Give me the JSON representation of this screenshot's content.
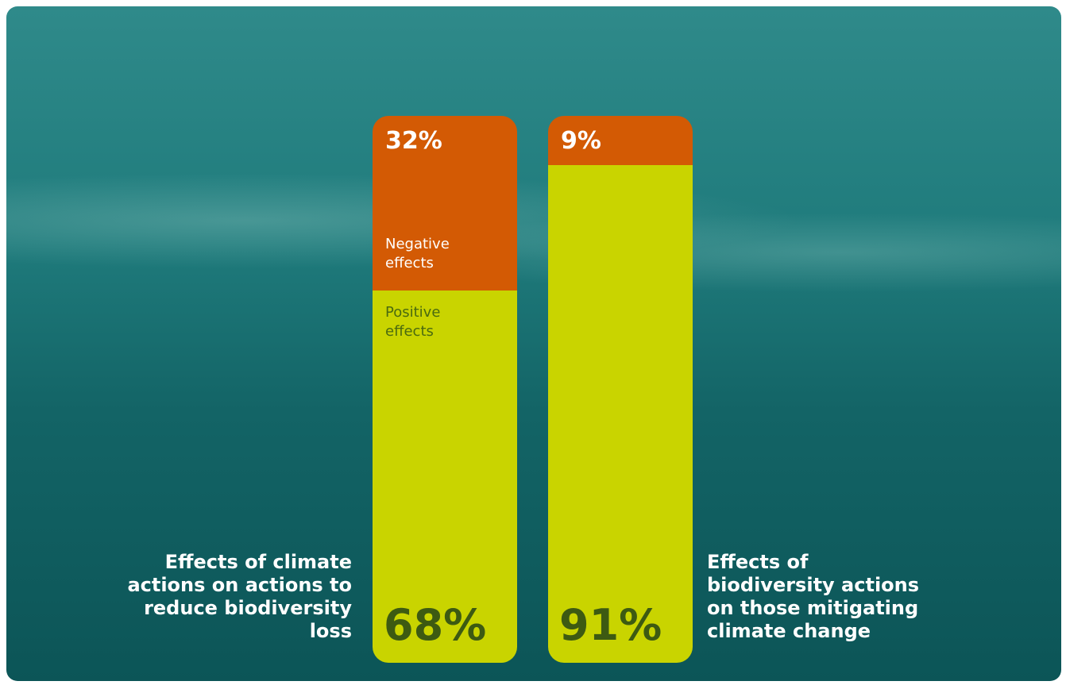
{
  "chart_data": {
    "type": "bar",
    "stacked": true,
    "categories": [
      "Effects of climate actions on actions to reduce biodiversity loss",
      "Effects of biodiversity actions on those mitigating climate change"
    ],
    "series": [
      {
        "name": "Positive effects",
        "color": "#c9d400",
        "values": [
          68,
          91
        ],
        "value_labels": [
          "68%",
          "91%"
        ]
      },
      {
        "name": "Negative effects",
        "color": "#d35a04",
        "values": [
          32,
          9
        ],
        "value_labels": [
          "32%",
          "9%"
        ]
      }
    ]
  }
}
